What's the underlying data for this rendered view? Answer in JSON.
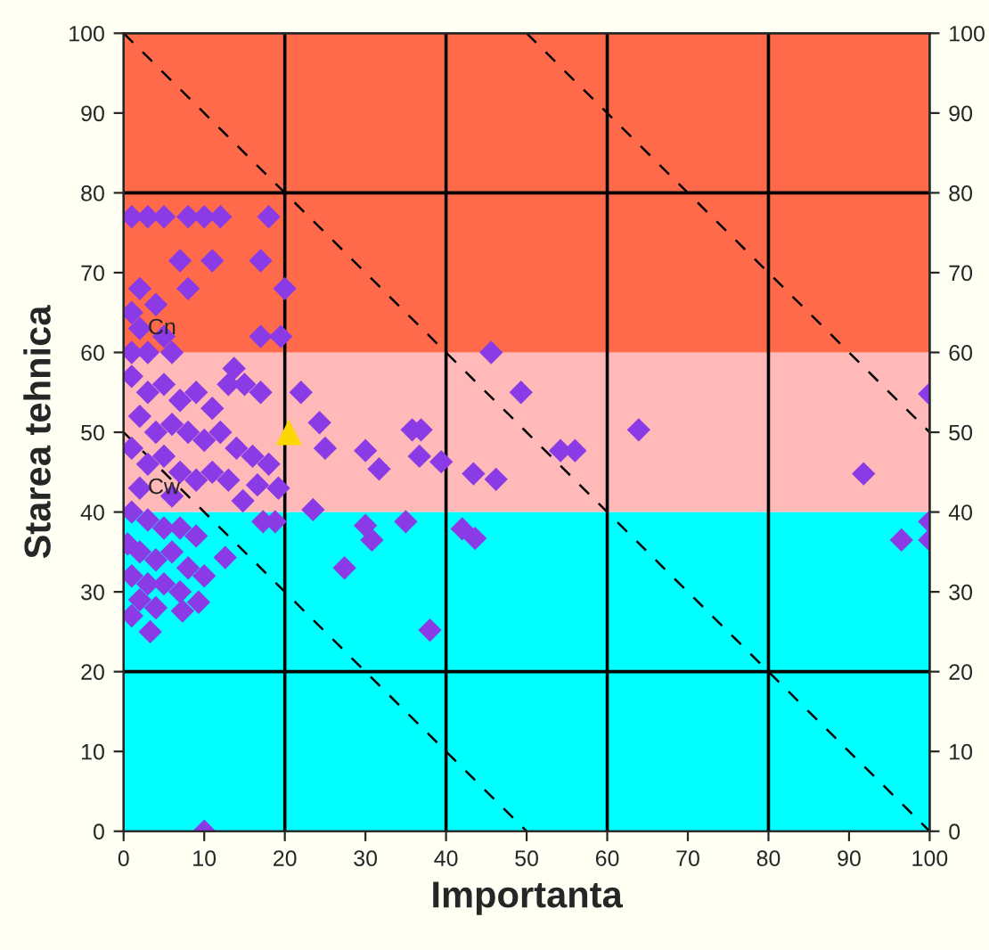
{
  "chart_data": {
    "type": "scatter",
    "xlabel": "Importanta",
    "ylabel": "Starea tehnica",
    "xlim": [
      0,
      100
    ],
    "xticks": [
      0,
      10,
      20,
      30,
      40,
      50,
      60,
      70,
      80,
      90,
      100
    ],
    "ylim": [
      0,
      100
    ],
    "yticks": [
      0,
      10,
      20,
      30,
      40,
      50,
      60,
      70,
      80,
      90,
      100
    ],
    "y2lim": [
      0,
      100
    ],
    "y2ticks": [
      0,
      10,
      20,
      30,
      40,
      50,
      60,
      70,
      80,
      90,
      100
    ],
    "grid": false,
    "legend": false,
    "bands": [
      {
        "axis": "y",
        "from": 0,
        "to": 40,
        "color": "#00ffff"
      },
      {
        "axis": "y",
        "from": 40,
        "to": 60,
        "color": "#ffb9b9"
      },
      {
        "axis": "y",
        "from": 60,
        "to": 100,
        "color": "#ff6a4a"
      }
    ],
    "ref_lines": [
      {
        "axis": "x",
        "value": 20,
        "color": "#000000"
      },
      {
        "axis": "x",
        "value": 40,
        "color": "#000000"
      },
      {
        "axis": "x",
        "value": 60,
        "color": "#000000"
      },
      {
        "axis": "x",
        "value": 80,
        "color": "#000000"
      },
      {
        "axis": "y",
        "value": 20,
        "color": "#000000"
      },
      {
        "axis": "y",
        "value": 80,
        "color": "#000000"
      }
    ],
    "annotations": [
      {
        "text": "Cn",
        "x": 3,
        "y": 63
      },
      {
        "text": "Cw",
        "x": 3,
        "y": 43
      }
    ],
    "series": [
      {
        "type": "line",
        "color": "#000000",
        "line_style": "dashed",
        "marker": "none",
        "x": [
          0,
          50
        ],
        "values": [
          50,
          0
        ]
      },
      {
        "type": "line",
        "color": "#000000",
        "line_style": "dashed",
        "marker": "none",
        "x": [
          0,
          100
        ],
        "values": [
          100,
          0
        ]
      },
      {
        "type": "line",
        "color": "#000000",
        "line_style": "dashed",
        "marker": "none",
        "x": [
          50,
          100
        ],
        "values": [
          100,
          50
        ]
      },
      {
        "color": "#8a3be6",
        "marker": "diamond",
        "x": [
          1,
          3,
          5,
          8,
          10,
          12,
          18,
          7,
          11,
          17,
          2,
          8,
          20,
          4,
          1,
          2,
          5,
          17,
          19.5,
          1,
          3,
          6,
          13.7,
          15,
          13,
          17,
          22,
          24.3,
          25,
          1,
          3,
          5,
          7,
          9,
          11,
          2,
          4,
          6,
          8,
          10,
          12,
          14,
          16,
          18,
          1,
          3,
          5,
          7,
          9,
          11,
          13,
          2,
          6,
          16.6,
          19.2,
          14.8,
          17.3,
          18.8,
          23.5,
          45.6,
          49.3,
          35.8,
          36.9,
          30,
          31.7,
          36.7,
          39.4,
          43.4,
          46.2,
          54.2,
          56,
          63.9,
          30,
          30.8,
          35,
          42,
          43.6,
          27.4,
          38,
          100,
          91.8,
          100,
          96.5,
          100,
          1,
          3,
          5,
          7,
          9,
          0.5,
          2,
          4,
          6,
          8,
          10,
          12.6,
          1,
          3,
          5,
          7,
          9.3,
          7.3,
          2,
          4,
          1,
          3.3,
          10
        ],
        "values": [
          77,
          77,
          77,
          77,
          77,
          77,
          77,
          71.5,
          71.5,
          71.5,
          68,
          68,
          68,
          66,
          65,
          63,
          62,
          62,
          62,
          60,
          60,
          60,
          58,
          56,
          56,
          55,
          55,
          51.2,
          48,
          57,
          55,
          56,
          54,
          55,
          53,
          52,
          50,
          51,
          50,
          49,
          50,
          48,
          47,
          46,
          48,
          46,
          47,
          45,
          44,
          45,
          44,
          43,
          42,
          43.4,
          43,
          41.4,
          38.8,
          38.8,
          40.3,
          60,
          55,
          50.3,
          50.3,
          47.7,
          45.4,
          47,
          46.3,
          44.8,
          44.1,
          47.7,
          47.7,
          50.3,
          38.3,
          36.5,
          38.8,
          37.9,
          36.7,
          33,
          25.2,
          54.8,
          44.8,
          38.8,
          36.5,
          36.5,
          40,
          39,
          38,
          38,
          37,
          36,
          35,
          34,
          35,
          33,
          32,
          34.3,
          32,
          31,
          31,
          30,
          28.7,
          27.6,
          29,
          28,
          27,
          25,
          0
        ]
      },
      {
        "color": "#ffd700",
        "marker": "triangle",
        "x": [
          20.5
        ],
        "values": [
          50
        ]
      }
    ]
  }
}
